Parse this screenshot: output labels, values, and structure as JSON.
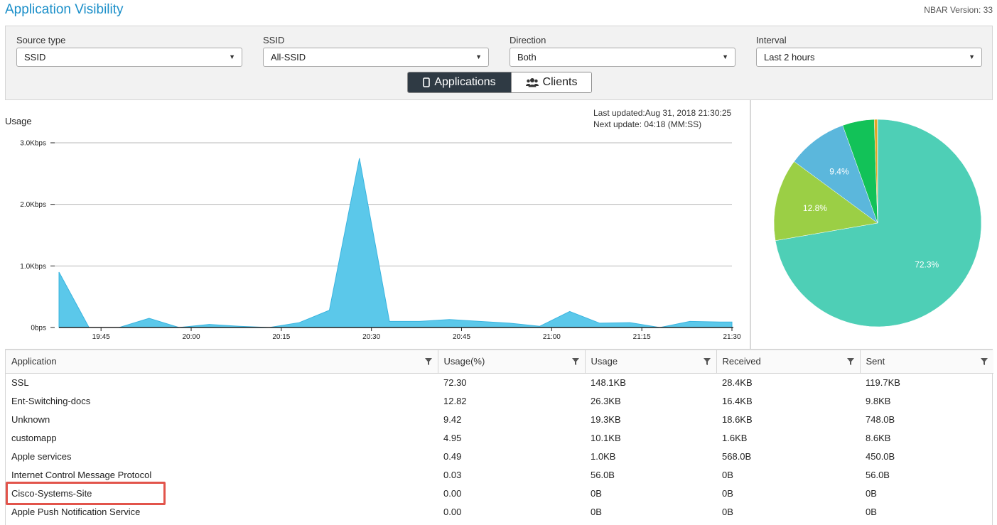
{
  "header": {
    "title": "Application Visibility",
    "version": "NBAR Version: 33"
  },
  "filters": {
    "source_type": {
      "label": "Source type",
      "value": "SSID"
    },
    "ssid": {
      "label": "SSID",
      "value": "All-SSID"
    },
    "direction": {
      "label": "Direction",
      "value": "Both"
    },
    "interval": {
      "label": "Interval",
      "value": "Last 2 hours"
    }
  },
  "view_toggle": {
    "applications_label": "Applications",
    "clients_label": "Clients",
    "active": "Applications"
  },
  "usage_chart": {
    "title": "Usage",
    "last_updated": "Last updated:Aug 31, 2018 21:30:25",
    "next_update": "Next update: 04:18 (MM:SS)"
  },
  "colors": {
    "accent": "#1b8fc9",
    "area_fill": "#5bc8ea",
    "highlight": "#e2544b"
  },
  "chart_data": [
    {
      "type": "area",
      "title": "Usage",
      "y_ticks": [
        "0bps",
        "1.0Kbps",
        "2.0Kbps",
        "3.0Kbps"
      ],
      "x_ticks": [
        "19:45",
        "20:00",
        "20:15",
        "20:30",
        "20:45",
        "21:00",
        "21:15",
        "21:30"
      ],
      "ylim": [
        0,
        3.0
      ],
      "y_unit": "Kbps",
      "x": [
        "19:38",
        "19:43",
        "19:48",
        "19:53",
        "19:58",
        "20:03",
        "20:08",
        "20:13",
        "20:18",
        "20:23",
        "20:28",
        "20:33",
        "20:38",
        "20:43",
        "20:48",
        "20:53",
        "20:58",
        "21:03",
        "21:08",
        "21:13",
        "21:18",
        "21:23",
        "21:28",
        "21:30"
      ],
      "values": [
        0.9,
        0.0,
        0.0,
        0.15,
        0.0,
        0.05,
        0.02,
        0.0,
        0.08,
        0.28,
        2.75,
        0.1,
        0.1,
        0.13,
        0.1,
        0.07,
        0.02,
        0.26,
        0.07,
        0.08,
        0.0,
        0.1,
        0.09,
        0.09
      ],
      "grid": true
    },
    {
      "type": "pie",
      "labels": [
        "SSL",
        "Ent-Switching-docs",
        "Unknown",
        "customapp",
        "Apple services",
        "Internet Control Message Protocol"
      ],
      "values": [
        72.3,
        12.82,
        9.42,
        4.95,
        0.49,
        0.03
      ],
      "slice_labels": [
        "72.3%",
        "12.8%",
        "9.4%",
        "",
        "",
        ""
      ],
      "colors": [
        "#4ecfb6",
        "#9bcf45",
        "#5bb7dc",
        "#12c258",
        "#e3a524",
        "#c97a2c"
      ]
    }
  ],
  "table": {
    "columns": [
      "Application",
      "Usage(%)",
      "Usage",
      "Received",
      "Sent"
    ],
    "rows": [
      [
        "SSL",
        "72.30",
        "148.1KB",
        "28.4KB",
        "119.7KB"
      ],
      [
        "Ent-Switching-docs",
        "12.82",
        "26.3KB",
        "16.4KB",
        "9.8KB"
      ],
      [
        "Unknown",
        "9.42",
        "19.3KB",
        "18.6KB",
        "748.0B"
      ],
      [
        "customapp",
        "4.95",
        "10.1KB",
        "1.6KB",
        "8.6KB"
      ],
      [
        "Apple services",
        "0.49",
        "1.0KB",
        "568.0B",
        "450.0B"
      ],
      [
        "Internet Control Message Protocol",
        "0.03",
        "56.0B",
        "0B",
        "56.0B"
      ],
      [
        "Cisco-Systems-Site",
        "0.00",
        "0B",
        "0B",
        "0B"
      ],
      [
        "Apple Push Notification Service",
        "0.00",
        "0B",
        "0B",
        "0B"
      ]
    ]
  }
}
